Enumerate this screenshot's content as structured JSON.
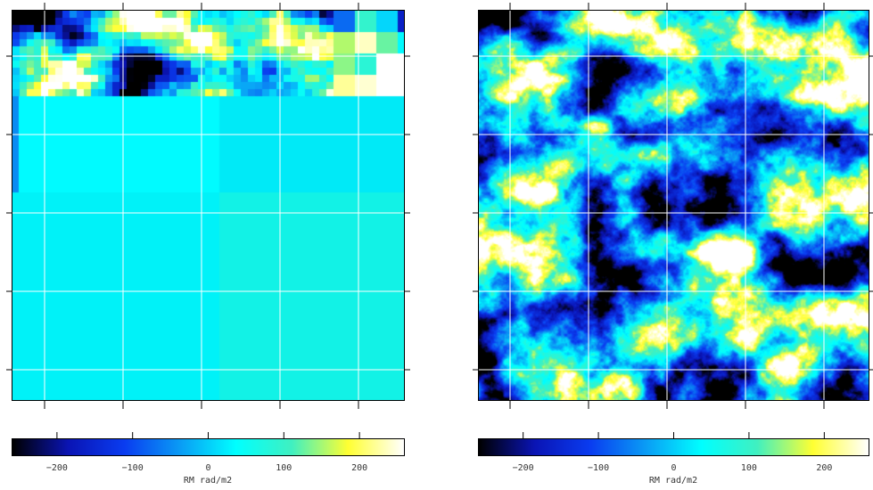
{
  "chart_data": [
    {
      "type": "heatmap",
      "name": "",
      "colormap": [
        "#000000",
        "#0a14b4",
        "#0a3cf0",
        "#0a9cf5",
        "#00ffff",
        "#40f0c0",
        "#ffff32",
        "#ffffff"
      ],
      "value_range": [
        -260,
        260
      ],
      "colorbar": {
        "ticks": [
          -200,
          -100,
          0,
          100,
          200
        ],
        "tick_labels": [
          "−200",
          "−100",
          "0",
          "100",
          "200"
        ],
        "unit": "RM rad/m2"
      },
      "grid": true
    },
    {
      "type": "heatmap",
      "name": "",
      "colormap": [
        "#000000",
        "#0a14b4",
        "#0a3cf0",
        "#0a9cf5",
        "#00ffff",
        "#40f0c0",
        "#ffff32",
        "#ffffff"
      ],
      "value_range": [
        -260,
        260
      ],
      "colorbar": {
        "ticks": [
          -200,
          -100,
          0,
          100,
          200
        ],
        "tick_labels": [
          "−200",
          "−100",
          "0",
          "100",
          "200"
        ],
        "unit": "RM rad/m2"
      },
      "grid": true
    }
  ]
}
